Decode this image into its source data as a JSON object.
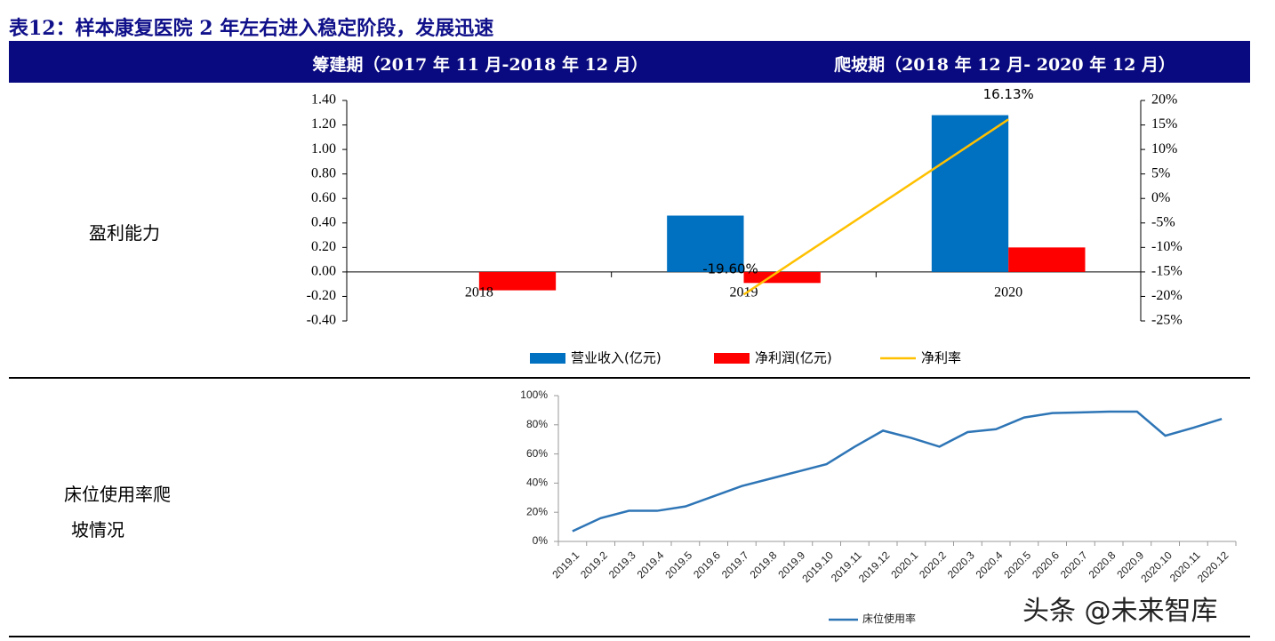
{
  "title": "表12：样本康复医院 2 年左右进入稳定阶段，发展迅速",
  "header": [
    "筹建期（2017 年 11 月-2018 年 12 月）",
    "爬坡期（2018 年 12 月- 2020 年 12 月）"
  ],
  "row_labels": [
    [
      "盈利能力"
    ],
    [
      "床位使用率爬",
      "坡情况"
    ]
  ],
  "chart_data": [
    {
      "type": "bar",
      "categories": [
        "2018",
        "2019",
        "2020"
      ],
      "series": [
        {
          "name": "营业收入(亿元)",
          "color": "#0070c0",
          "values": [
            null,
            0.46,
            1.28
          ]
        },
        {
          "name": "净利润(亿元)",
          "color": "#ff0000",
          "values": [
            -0.15,
            -0.09,
            0.2
          ]
        },
        {
          "name": "净利率",
          "type": "line",
          "axis": "y2",
          "color": "#ffc000",
          "values": [
            null,
            -19.6,
            16.13
          ],
          "value_labels": [
            null,
            "-19.60%",
            "16.13%"
          ]
        }
      ],
      "ylim": [
        -0.4,
        1.4
      ],
      "yticks": [
        {
          "value": -0.4,
          "label": "-0.40"
        },
        {
          "value": -0.2,
          "label": "-0.20"
        },
        {
          "value": 0,
          "label": "0.00"
        },
        {
          "value": 0.2,
          "label": "0.20"
        },
        {
          "value": 0.4,
          "label": "0.40"
        },
        {
          "value": 0.6,
          "label": "0.60"
        },
        {
          "value": 0.8,
          "label": "0.80"
        },
        {
          "value": 1.0,
          "label": "1.00"
        },
        {
          "value": 1.2,
          "label": "1.20"
        },
        {
          "value": 1.4,
          "label": "1.40"
        }
      ],
      "y2lim": [
        -25,
        20
      ],
      "y2ticks": [
        {
          "value": -25,
          "label": "-25%"
        },
        {
          "value": -20,
          "label": "-20%"
        },
        {
          "value": -15,
          "label": "-15%"
        },
        {
          "value": -10,
          "label": "-10%"
        },
        {
          "value": -5,
          "label": "-5%"
        },
        {
          "value": 0,
          "label": "0%"
        },
        {
          "value": 5,
          "label": "5%"
        },
        {
          "value": 10,
          "label": "10%"
        },
        {
          "value": 15,
          "label": "15%"
        },
        {
          "value": 20,
          "label": "20%"
        }
      ],
      "legend": "bottom"
    },
    {
      "type": "line",
      "categories": [
        "2019.1",
        "2019.2",
        "2019.3",
        "2019.4",
        "2019.5",
        "2019.6",
        "2019.7",
        "2019.8",
        "2019.9",
        "2019.10",
        "2019.11",
        "2019.12",
        "2020.1",
        "2020.2",
        "2020.3",
        "2020.4",
        "2020.5",
        "2020.6",
        "2020.7",
        "2020.8",
        "2020.9",
        "2020.10",
        "2020.11",
        "2020.12"
      ],
      "series": [
        {
          "name": "床位使用率",
          "color": "#2e75b6",
          "values": [
            7,
            16,
            21,
            21,
            24,
            31,
            38,
            43,
            48,
            53,
            65,
            76,
            71,
            65,
            75,
            77,
            85,
            88,
            88.5,
            89,
            89,
            72.5,
            78,
            84
          ]
        }
      ],
      "ylim": [
        0,
        100
      ],
      "yticks": [
        {
          "value": 0,
          "label": "0%"
        },
        {
          "value": 20,
          "label": "20%"
        },
        {
          "value": 40,
          "label": "40%"
        },
        {
          "value": 60,
          "label": "60%"
        },
        {
          "value": 80,
          "label": "80%"
        },
        {
          "value": 100,
          "label": "100%"
        }
      ],
      "legend": "bottom"
    }
  ],
  "watermark": "头条 @未来智库"
}
